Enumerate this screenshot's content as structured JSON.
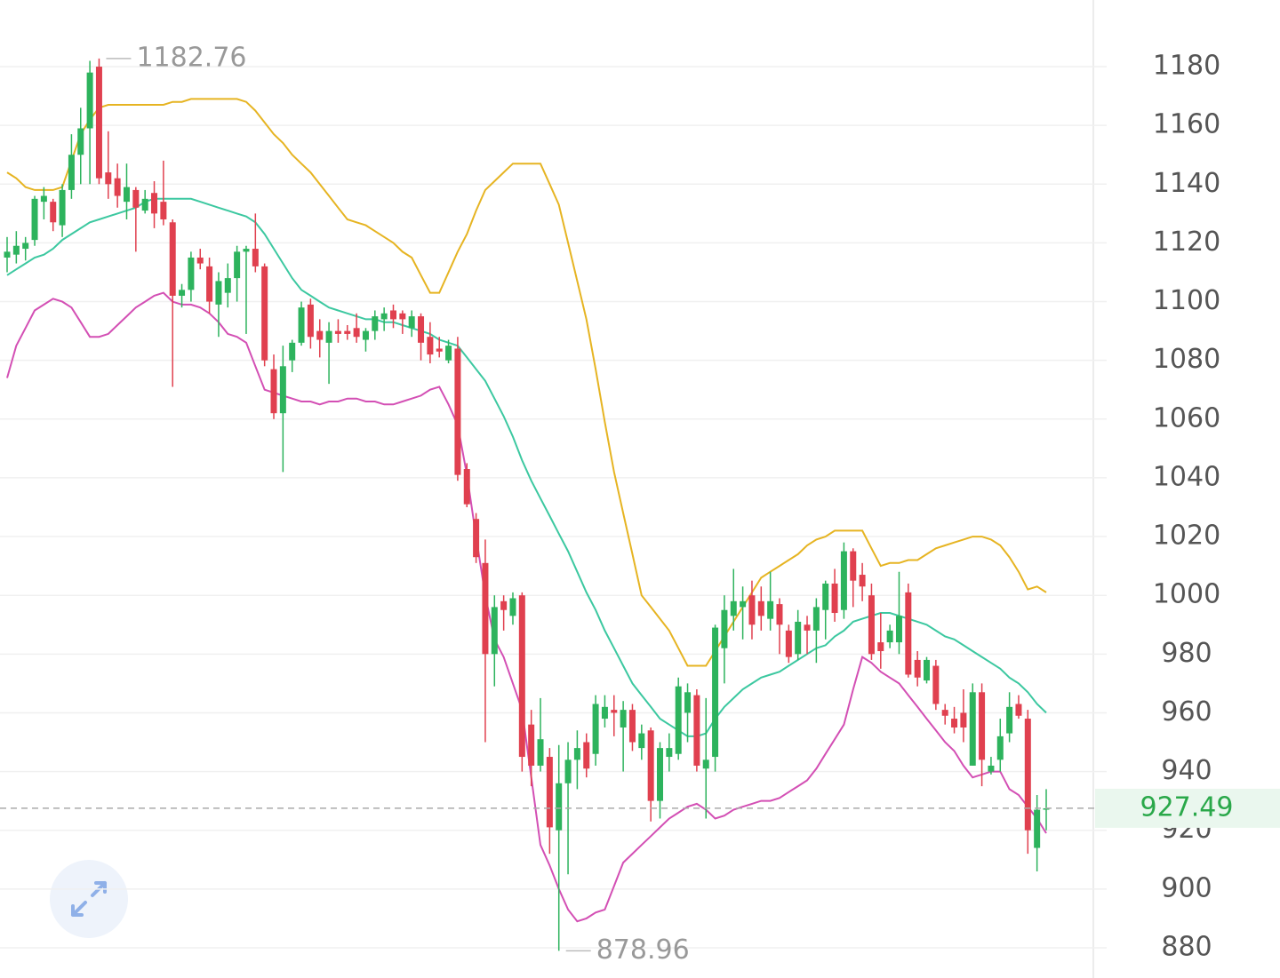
{
  "chart_data": {
    "type": "candlestick",
    "ylim": [
      869.7,
      1202.7
    ],
    "yticks": [
      880,
      900,
      920,
      940,
      960,
      980,
      1000,
      1020,
      1040,
      1060,
      1080,
      1100,
      1120,
      1140,
      1160,
      1180
    ],
    "grid": true,
    "up_color": "#2db35d",
    "down_color": "#e0404f",
    "candles": {
      "open": [
        1115,
        1116,
        1118,
        1121,
        1134,
        1134,
        1126,
        1138,
        1150,
        1159,
        1180,
        1144,
        1142,
        1134,
        1138,
        1131,
        1137,
        1134,
        1127,
        1102,
        1104,
        1115,
        1112,
        1099,
        1103,
        1108,
        1117,
        1118,
        1112,
        1077,
        1062,
        1080,
        1086,
        1099,
        1090,
        1086,
        1090,
        1090,
        1091,
        1087,
        1090,
        1094,
        1097,
        1096,
        1091,
        1095,
        1088,
        1084,
        1080,
        1084,
        1043,
        1026,
        1011,
        980,
        998,
        993,
        1000,
        956,
        942,
        945,
        920,
        936,
        944,
        950,
        946,
        958,
        961,
        955,
        961,
        948,
        954,
        930,
        945,
        946,
        960,
        966,
        941,
        945,
        982,
        993,
        996,
        1000,
        998,
        992,
        997,
        988,
        980,
        990,
        988,
        995,
        1004,
        995,
        1015,
        1007,
        1000,
        984,
        984,
        984,
        1001,
        978,
        971,
        976,
        961,
        958,
        960,
        942,
        967,
        940,
        944,
        953,
        963,
        958,
        914,
        927
      ],
      "high": [
        1122,
        1124,
        1122,
        1136,
        1139,
        1135,
        1140,
        1157,
        1166,
        1182,
        1182.76,
        1158,
        1147,
        1147,
        1139,
        1138,
        1141,
        1148,
        1128,
        1106,
        1117,
        1118,
        1115,
        1110,
        1113,
        1119,
        1119,
        1130,
        1113,
        1082,
        1085,
        1087,
        1100,
        1101,
        1094,
        1093,
        1094,
        1092,
        1096,
        1091,
        1097,
        1098,
        1099,
        1097,
        1097,
        1096,
        1093,
        1088,
        1087,
        1088,
        1045,
        1028,
        1019,
        1000,
        1000,
        1001,
        1001,
        961,
        965,
        948,
        949,
        950,
        954,
        953,
        966,
        966,
        966,
        964,
        963,
        956,
        955,
        950,
        953,
        972,
        970,
        968,
        965,
        990,
        1000,
        1009,
        1003,
        1005,
        1003,
        1008,
        999,
        990,
        995,
        993,
        999,
        1005,
        1009,
        1018,
        1016,
        1011,
        1004,
        994,
        990,
        1008,
        1004,
        981,
        979,
        978,
        963,
        962,
        968,
        970,
        970,
        945,
        958,
        967,
        966,
        961,
        932,
        934
      ],
      "low": [
        1110,
        1113,
        1114,
        1119,
        1128,
        1124,
        1122,
        1135,
        1140,
        1140,
        1140,
        1135,
        1132,
        1128,
        1117,
        1130,
        1125,
        1126,
        1071,
        1098,
        1100,
        1111,
        1096,
        1088,
        1098,
        1100,
        1089,
        1110,
        1078,
        1060,
        1042,
        1076,
        1085,
        1084,
        1081,
        1072,
        1086,
        1087,
        1086,
        1083,
        1087,
        1090,
        1091,
        1089,
        1088,
        1080,
        1079,
        1081,
        1079,
        1039,
        1030,
        1011,
        950,
        969,
        988,
        990,
        940,
        935,
        940,
        912,
        878.96,
        905,
        934,
        938,
        942,
        955,
        952,
        940,
        947,
        944,
        923,
        924,
        940,
        944,
        950,
        940,
        924,
        940,
        970,
        988,
        985,
        985,
        988,
        988,
        980,
        977,
        978,
        980,
        977,
        985,
        991,
        992,
        996,
        998,
        978,
        975,
        982,
        980,
        972,
        969,
        970,
        961,
        956,
        953,
        950,
        942,
        935,
        939,
        940,
        950,
        958,
        912,
        906,
        920
      ],
      "close": [
        1117,
        1119,
        1120,
        1135,
        1136,
        1127,
        1138,
        1150,
        1159,
        1178,
        1142,
        1140,
        1136,
        1139,
        1132,
        1135,
        1130,
        1128,
        1102,
        1104,
        1115,
        1113,
        1100,
        1107,
        1108,
        1117,
        1118,
        1112,
        1080,
        1062,
        1078,
        1086,
        1098,
        1088,
        1087,
        1090,
        1089,
        1089,
        1088,
        1090,
        1095,
        1096,
        1094,
        1094,
        1095,
        1086,
        1082,
        1083,
        1085,
        1041,
        1031,
        1013,
        980,
        996,
        995,
        999,
        945,
        942,
        951,
        921,
        936,
        944,
        948,
        941,
        963,
        962,
        960,
        961,
        950,
        953,
        930,
        948,
        948,
        969,
        967,
        942,
        944,
        989,
        995,
        998,
        998,
        990,
        993,
        998,
        990,
        979,
        991,
        988,
        996,
        1004,
        994,
        1015,
        1005,
        1003,
        980,
        981,
        988,
        993,
        973,
        972,
        978,
        963,
        959,
        955,
        955,
        967,
        944,
        942,
        952,
        962,
        959,
        920,
        927,
        927.49
      ]
    },
    "series": [
      {
        "color": "#e6b422",
        "values": [
          1144,
          1142,
          1139,
          1138,
          1138,
          1138,
          1139,
          1148,
          1157,
          1162,
          1166,
          1167,
          1167,
          1167,
          1167,
          1167,
          1167,
          1167,
          1168,
          1168,
          1169,
          1169,
          1169,
          1169,
          1169,
          1169,
          1168,
          1165,
          1161,
          1157,
          1154,
          1150,
          1147,
          1144,
          1140,
          1136,
          1132,
          1128,
          1127,
          1126,
          1124,
          1122,
          1120,
          1117,
          1115,
          1109,
          1103,
          1103,
          1110,
          1117,
          1123,
          1131,
          1138,
          1141,
          1144,
          1147,
          1147,
          1147,
          1147,
          1140,
          1133,
          1120,
          1107,
          1094,
          1077,
          1059,
          1042,
          1028,
          1014,
          1000,
          996,
          992,
          988,
          982,
          976,
          976,
          976,
          981,
          986,
          991,
          996,
          1001,
          1006,
          1008,
          1010,
          1012,
          1014,
          1017,
          1019,
          1020,
          1022,
          1022,
          1022,
          1022,
          1016,
          1010,
          1011,
          1011,
          1012,
          1012,
          1014,
          1016,
          1017,
          1018,
          1019,
          1020,
          1020,
          1019,
          1017,
          1013,
          1008,
          1002,
          1003,
          1001
        ]
      },
      {
        "color": "#3cc8a0",
        "values": [
          1109,
          1111,
          1113,
          1115,
          1116,
          1118,
          1121,
          1123,
          1125,
          1127,
          1128,
          1129,
          1130,
          1131,
          1132,
          1134,
          1135,
          1135,
          1135,
          1135,
          1135,
          1134,
          1133,
          1132,
          1131,
          1130,
          1129,
          1127,
          1123,
          1118,
          1113,
          1108,
          1104,
          1102,
          1100,
          1098,
          1097,
          1096,
          1095,
          1094,
          1094,
          1093,
          1093,
          1092,
          1091,
          1090,
          1089,
          1087,
          1086,
          1085,
          1081,
          1077,
          1073,
          1067,
          1061,
          1054,
          1046,
          1039,
          1033,
          1027,
          1021,
          1015,
          1008,
          1001,
          995,
          988,
          982,
          976,
          970,
          966,
          962,
          958,
          956,
          954,
          952,
          952,
          953,
          958,
          962,
          965,
          968,
          970,
          972,
          973,
          974,
          976,
          978,
          980,
          982,
          983,
          986,
          988,
          991,
          992,
          993,
          994,
          994,
          993,
          992,
          991,
          990,
          988,
          986,
          985,
          983,
          981,
          979,
          977,
          975,
          972,
          970,
          967,
          963,
          960
        ]
      },
      {
        "color": "#d34fb4",
        "values": [
          1074,
          1085,
          1091,
          1097,
          1099,
          1101,
          1100,
          1098,
          1093,
          1088,
          1088,
          1089,
          1092,
          1095,
          1098,
          1100,
          1102,
          1103,
          1100,
          1099,
          1099,
          1098,
          1096,
          1093,
          1089,
          1088,
          1086,
          1078,
          1070,
          1069,
          1068,
          1067,
          1066,
          1066,
          1065,
          1066,
          1066,
          1067,
          1067,
          1066,
          1066,
          1065,
          1065,
          1066,
          1067,
          1068,
          1070,
          1071,
          1065,
          1058,
          1041,
          1020,
          1000,
          985,
          979,
          970,
          961,
          938,
          915,
          908,
          900,
          893,
          889,
          890,
          892,
          893,
          901,
          909,
          912,
          915,
          918,
          921,
          924,
          926,
          928,
          929,
          927,
          924,
          925,
          927,
          928,
          929,
          930,
          930,
          931,
          933,
          935,
          937,
          941,
          946,
          951,
          956,
          968,
          979,
          977,
          974,
          972,
          970,
          966,
          962,
          958,
          954,
          950,
          947,
          942,
          938,
          939,
          940,
          940,
          934,
          932,
          928,
          924,
          919
        ]
      }
    ],
    "current_color": "#2aa84a"
  }
}
